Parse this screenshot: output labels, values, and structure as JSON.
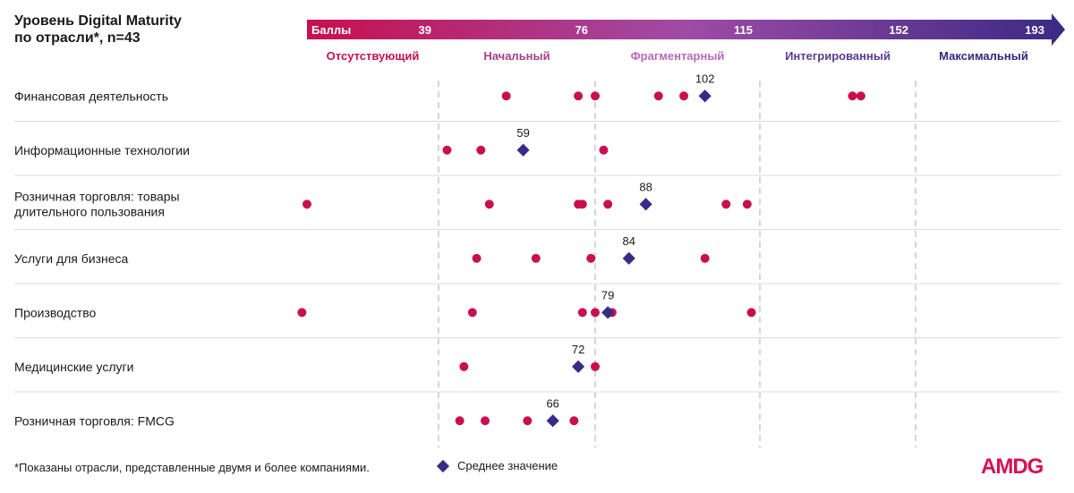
{
  "title": {
    "line1": "Уровень Digital Maturity",
    "line2": "по отрасли*, n=43"
  },
  "chart_data": {
    "type": "scatter",
    "scale": {
      "label": "Баллы",
      "ticks": [
        39,
        76,
        115,
        152,
        193
      ],
      "xlim": [
        13,
        193
      ],
      "colors": [
        "#c8104f",
        "#9f4ba6",
        "#3a2a85"
      ]
    },
    "levels": [
      {
        "name": "Отсутствующий",
        "from": 13,
        "to": 39,
        "color": "#c8104f"
      },
      {
        "name": "Начальный",
        "from": 39,
        "to": 76,
        "color": "#a83e8c"
      },
      {
        "name": "Фрагментарный",
        "from": 76,
        "to": 115,
        "color": "#b968bd"
      },
      {
        "name": "Интегрированный",
        "from": 115,
        "to": 152,
        "color": "#5a3a95"
      },
      {
        "name": "Максимальный",
        "from": 152,
        "to": 193,
        "color": "#2e2a7d"
      }
    ],
    "categories": [
      "Финансовая деятельность",
      "Информационные технологии",
      "Розничная торговля: товары длительного пользования",
      "Услуги для бизнеса",
      "Производство",
      "Медицинские услуги",
      "Розничная торговля: FMCG"
    ],
    "series": [
      {
        "name": "companies",
        "color": "#c8104f",
        "points": [
          [
            55,
            72,
            76,
            91,
            97,
            137,
            139
          ],
          [
            41,
            49,
            78
          ],
          [
            13,
            51,
            72,
            73,
            79,
            107,
            112
          ],
          [
            48,
            62,
            75,
            102
          ],
          [
            12,
            47,
            73,
            76,
            80,
            113
          ],
          [
            45,
            76
          ],
          [
            44,
            50,
            60,
            71
          ]
        ]
      },
      {
        "name": "Среднее значение",
        "color": "#3a2a85",
        "values": [
          102,
          59,
          88,
          84,
          79,
          72,
          66
        ]
      }
    ]
  },
  "footer": {
    "note": "*Показаны отрасли, представленные двумя и более компаниями.",
    "legend_label": "Среднее значение",
    "logo": "AMDG"
  }
}
